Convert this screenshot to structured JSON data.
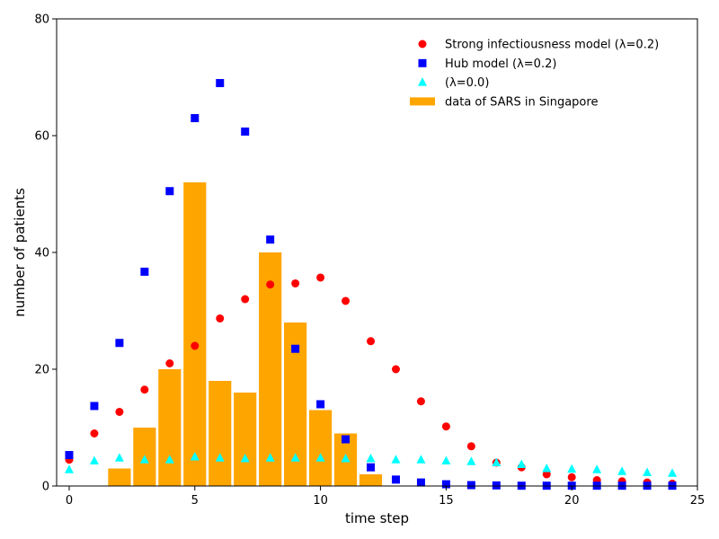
{
  "chart_data": {
    "type": "bar",
    "title": "",
    "xlabel": "time step",
    "ylabel": "number of patients",
    "xlim": [
      -0.5,
      25
    ],
    "ylim": [
      0,
      80
    ],
    "xticks": [
      0,
      5,
      10,
      15,
      20,
      25
    ],
    "yticks": [
      0,
      20,
      40,
      60,
      80
    ],
    "grid": false,
    "legend_position": "top-right",
    "bars": {
      "name": "data of SARS in Singapore",
      "color": "#ffa500",
      "x": [
        2,
        3,
        4,
        5,
        6,
        7,
        8,
        9,
        10,
        11,
        12
      ],
      "values": [
        3,
        10,
        20,
        52,
        18,
        16,
        40,
        28,
        13,
        9,
        2
      ]
    },
    "series": [
      {
        "name": "Strong infectiousness model (λ=0.2)",
        "marker": "circle",
        "color": "#ff0000",
        "x": [
          0,
          1,
          2,
          3,
          4,
          5,
          6,
          7,
          8,
          9,
          10,
          11,
          12,
          13,
          14,
          15,
          16,
          17,
          18,
          19,
          20,
          21,
          22,
          23,
          24
        ],
        "values": [
          4.5,
          9,
          12.7,
          16.5,
          21,
          24,
          28.7,
          32,
          34.5,
          34.7,
          35.7,
          31.7,
          24.8,
          20,
          14.5,
          10.2,
          6.8,
          4,
          3.2,
          2,
          1.5,
          1,
          0.8,
          0.6,
          0.4
        ]
      },
      {
        "name": "Hub model (λ=0.2)",
        "marker": "square",
        "color": "#0000ff",
        "x": [
          0,
          1,
          2,
          3,
          4,
          5,
          6,
          7,
          8,
          9,
          10,
          11,
          12,
          13,
          14,
          15,
          16,
          17,
          18,
          19,
          20,
          21,
          22,
          23,
          24
        ],
        "values": [
          5.3,
          13.7,
          24.5,
          36.7,
          50.5,
          63,
          69,
          60.7,
          42.2,
          23.5,
          14,
          8,
          3.2,
          1.1,
          0.6,
          0.3,
          0.15,
          0.1,
          0.05,
          0.05,
          0.05,
          0.05,
          0.05,
          0.05,
          0.05
        ]
      },
      {
        "name": "(λ=0.0)",
        "marker": "triangle",
        "color": "#00ffff",
        "x": [
          0,
          1,
          2,
          3,
          4,
          5,
          6,
          7,
          8,
          9,
          10,
          11,
          12,
          13,
          14,
          15,
          16,
          17,
          18,
          19,
          20,
          21,
          22,
          23,
          24
        ],
        "values": [
          2.8,
          4.3,
          4.8,
          4.5,
          4.5,
          5,
          4.8,
          4.7,
          4.8,
          4.8,
          4.8,
          4.7,
          4.7,
          4.5,
          4.5,
          4.3,
          4.2,
          4,
          3.7,
          3,
          2.9,
          2.8,
          2.5,
          2.3,
          2.2
        ]
      }
    ],
    "legend_order": [
      "Strong infectiousness model (λ=0.2)",
      "Hub model (λ=0.2)",
      "(λ=0.0)",
      "data of SARS in Singapore"
    ]
  }
}
